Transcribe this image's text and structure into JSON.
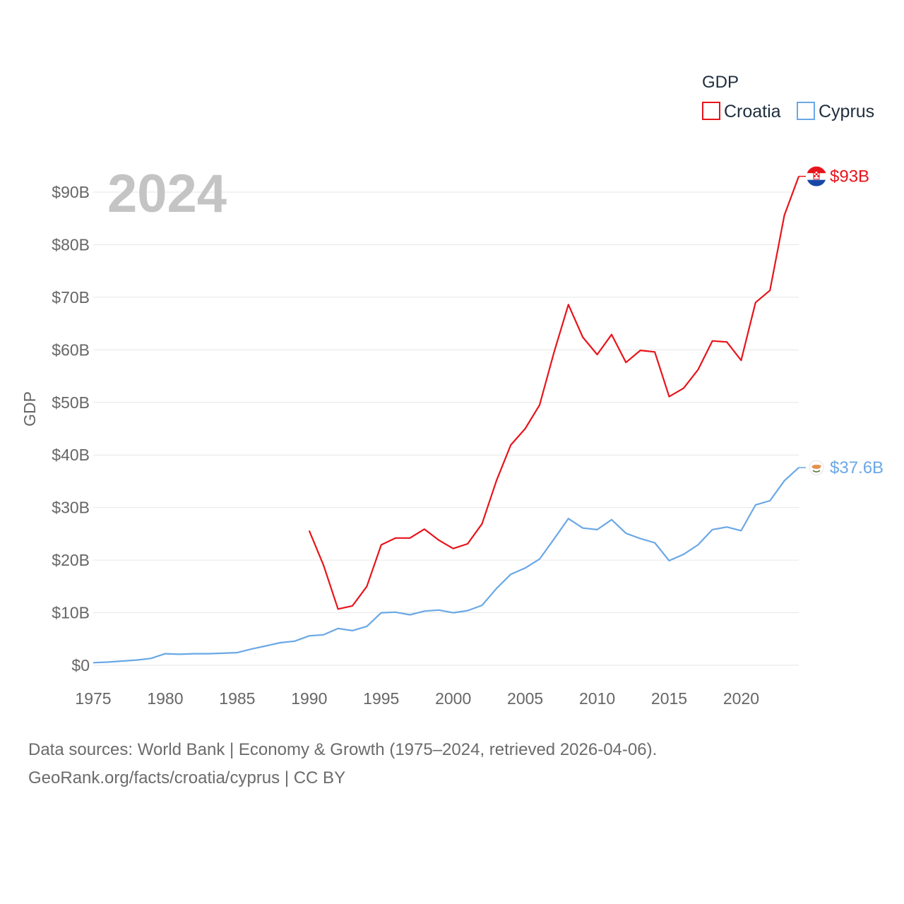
{
  "legend": {
    "title": "GDP",
    "items": [
      {
        "name": "Croatia",
        "color": "#e8141b"
      },
      {
        "name": "Cyprus",
        "color": "#6aa8e6"
      }
    ]
  },
  "year_label": "2024",
  "footer": {
    "line1": "Data sources: World Bank | Economy & Growth (1975–2024, retrieved 2026-04-06).",
    "line2": "GeoRank.org/facts/croatia/cyprus | CC BY"
  },
  "chart_data": {
    "type": "line",
    "title": "",
    "xlabel": "",
    "ylabel": "GDP",
    "xlim": [
      1975,
      2024
    ],
    "ylim": [
      0,
      90
    ],
    "x_ticks": [
      1975,
      1980,
      1985,
      1990,
      1995,
      2000,
      2005,
      2010,
      2015,
      2020
    ],
    "y_ticks": [
      {
        "value": 0,
        "label": "$0"
      },
      {
        "value": 10,
        "label": "$10B"
      },
      {
        "value": 20,
        "label": "$20B"
      },
      {
        "value": 30,
        "label": "$30B"
      },
      {
        "value": 40,
        "label": "$40B"
      },
      {
        "value": 50,
        "label": "$50B"
      },
      {
        "value": 60,
        "label": "$60B"
      },
      {
        "value": 70,
        "label": "$70B"
      },
      {
        "value": 80,
        "label": "$80B"
      },
      {
        "value": 90,
        "label": "$90B"
      }
    ],
    "unit": "billion US$",
    "grid": true,
    "series": [
      {
        "name": "Croatia",
        "color": "#e8141b",
        "end_label": "$93B",
        "flag": "croatia-flag",
        "x": [
          1990,
          1991,
          1992,
          1993,
          1994,
          1995,
          1996,
          1997,
          1998,
          1999,
          2000,
          2001,
          2002,
          2003,
          2004,
          2005,
          2006,
          2007,
          2008,
          2009,
          2010,
          2011,
          2012,
          2013,
          2014,
          2015,
          2016,
          2017,
          2018,
          2019,
          2020,
          2021,
          2022,
          2023,
          2024
        ],
        "values": [
          25.6,
          19.0,
          10.7,
          11.3,
          15.0,
          22.9,
          24.2,
          24.2,
          25.9,
          23.8,
          22.2,
          23.1,
          26.9,
          35.1,
          41.9,
          45.0,
          49.5,
          59.5,
          68.6,
          62.4,
          59.1,
          62.9,
          57.6,
          59.9,
          59.6,
          51.1,
          52.7,
          56.2,
          61.7,
          61.5,
          58.0,
          69.0,
          71.3,
          85.6,
          93.0
        ]
      },
      {
        "name": "Cyprus",
        "color": "#6aa8e6",
        "end_label": "$37.6B",
        "flag": "cyprus-flag",
        "x": [
          1975,
          1976,
          1977,
          1978,
          1979,
          1980,
          1981,
          1982,
          1983,
          1984,
          1985,
          1986,
          1987,
          1988,
          1989,
          1990,
          1991,
          1992,
          1993,
          1994,
          1995,
          1996,
          1997,
          1998,
          1999,
          2000,
          2001,
          2002,
          2003,
          2004,
          2005,
          2006,
          2007,
          2008,
          2009,
          2010,
          2011,
          2012,
          2013,
          2014,
          2015,
          2016,
          2017,
          2018,
          2019,
          2020,
          2021,
          2022,
          2023,
          2024
        ],
        "values": [
          0.5,
          0.6,
          0.8,
          1.0,
          1.3,
          2.2,
          2.1,
          2.2,
          2.2,
          2.3,
          2.4,
          3.1,
          3.7,
          4.3,
          4.6,
          5.6,
          5.8,
          7.0,
          6.6,
          7.4,
          10.0,
          10.1,
          9.6,
          10.3,
          10.5,
          10.0,
          10.4,
          11.4,
          14.6,
          17.3,
          18.5,
          20.2,
          24.0,
          27.9,
          26.1,
          25.8,
          27.7,
          25.1,
          24.1,
          23.3,
          19.9,
          21.1,
          22.9,
          25.8,
          26.3,
          25.6,
          30.5,
          31.3,
          35.1,
          37.6
        ]
      }
    ]
  }
}
